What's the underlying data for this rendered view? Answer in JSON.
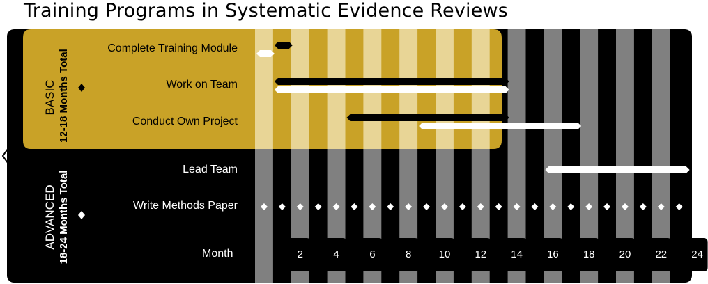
{
  "title": "Training Programs in Systematic Evidence Reviews",
  "groups": [
    {
      "name": "BASIC",
      "duration": "12-18 Months Total",
      "color": "#c9a227"
    },
    {
      "name": "ADVANCED",
      "duration": "18-24 Months Total",
      "color": "#000000"
    }
  ],
  "month_header": "Month",
  "months": [
    "2",
    "4",
    "6",
    "8",
    "10",
    "12",
    "14",
    "16",
    "18",
    "20",
    "22",
    "24"
  ],
  "tasks": [
    {
      "label": "Complete Training Module",
      "group": "BASIC"
    },
    {
      "label": "Work on Team",
      "group": "BASIC"
    },
    {
      "label": "Conduct Own Project",
      "group": "BASIC"
    },
    {
      "label": "Lead  Team",
      "group": "ADVANCED"
    },
    {
      "label": "Write Methods Paper",
      "group": "ADVANCED"
    }
  ],
  "chart_data": {
    "type": "gantt",
    "title": "Training Programs in Systematic Evidence Reviews",
    "x_unit": "Month",
    "x_ticks": [
      2,
      4,
      6,
      8,
      10,
      12,
      14,
      16,
      18,
      20,
      22,
      24
    ],
    "bars": [
      {
        "task": "Complete Training Module",
        "style": "black",
        "start": 1,
        "end": 2
      },
      {
        "task": "Complete Training Module",
        "style": "white",
        "start": 0,
        "end": 1
      },
      {
        "task": "Work on Team",
        "style": "black",
        "start": 1,
        "end": 14
      },
      {
        "task": "Work on Team",
        "style": "white",
        "start": 1,
        "end": 14
      },
      {
        "task": "Conduct Own Project",
        "style": "black",
        "start": 5,
        "end": 14
      },
      {
        "task": "Conduct Own Project",
        "style": "white",
        "start": 9,
        "end": 18
      },
      {
        "task": "Lead  Team",
        "style": "white",
        "start": 16,
        "end": 24
      }
    ],
    "milestones": [
      {
        "task": "Write Methods Paper",
        "months": [
          1,
          2,
          3,
          4,
          5,
          6,
          7,
          8,
          9,
          10,
          11,
          12,
          13,
          14,
          15,
          16,
          17,
          18,
          19,
          20,
          21,
          22,
          23,
          24
        ]
      }
    ],
    "colors": {
      "basic_band": "#c9a227",
      "stripe_light_basic": "#e8d596",
      "stripe_dark_advanced": "#808080",
      "background": "#000000"
    }
  }
}
